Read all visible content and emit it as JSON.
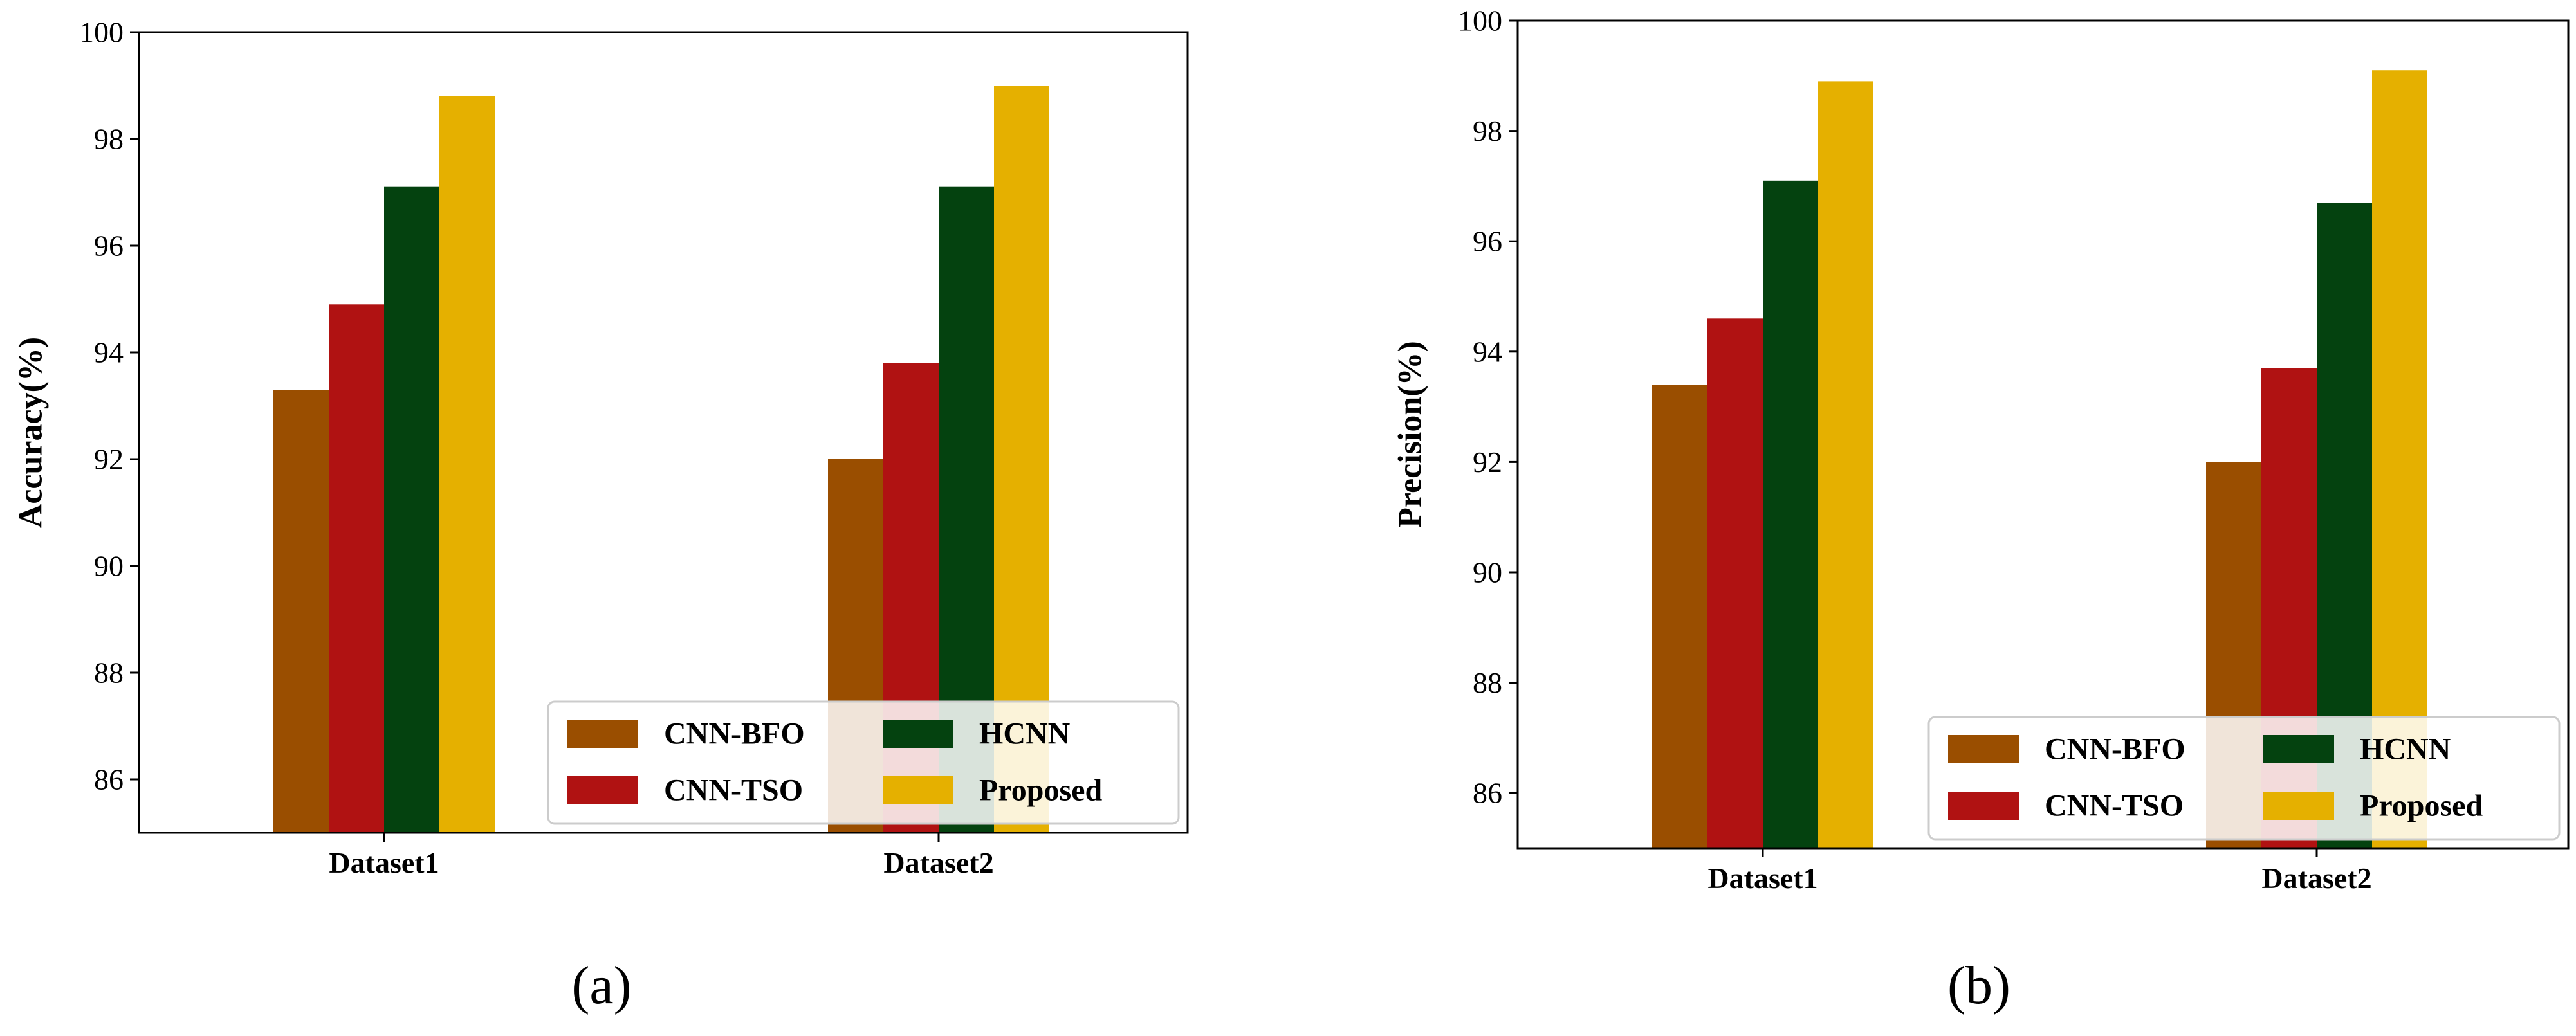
{
  "chart_data": [
    {
      "type": "bar",
      "panel_label": "(a)",
      "ylabel": "Accuracy(%)",
      "xlabel": "",
      "categories": [
        "Dataset1",
        "Dataset2"
      ],
      "ylim": [
        85,
        100
      ],
      "yticks": [
        86,
        88,
        90,
        92,
        94,
        96,
        98,
        100
      ],
      "grid": false,
      "legend_position": "lower-right",
      "series": [
        {
          "name": "CNN-BFO",
          "color": "#9a4e00",
          "values": [
            93.3,
            92.0
          ]
        },
        {
          "name": "CNN-TSO",
          "color": "#b01212",
          "values": [
            94.9,
            93.8
          ]
        },
        {
          "name": "HCNN",
          "color": "#04420f",
          "values": [
            97.1,
            97.1
          ]
        },
        {
          "name": "Proposed",
          "color": "#e5b000",
          "values": [
            98.8,
            99.0
          ]
        }
      ]
    },
    {
      "type": "bar",
      "panel_label": "(b)",
      "ylabel": "Precision(%)",
      "xlabel": "",
      "categories": [
        "Dataset1",
        "Dataset2"
      ],
      "ylim": [
        85,
        100
      ],
      "yticks": [
        86,
        88,
        90,
        92,
        94,
        96,
        98,
        100
      ],
      "grid": false,
      "legend_position": "lower-right",
      "series": [
        {
          "name": "CNN-BFO",
          "color": "#9a4e00",
          "values": [
            93.4,
            92.0
          ]
        },
        {
          "name": "CNN-TSO",
          "color": "#b01212",
          "values": [
            94.6,
            93.7
          ]
        },
        {
          "name": "HCNN",
          "color": "#04420f",
          "values": [
            97.1,
            96.7
          ]
        },
        {
          "name": "Proposed",
          "color": "#e5b000",
          "values": [
            98.9,
            99.1
          ]
        }
      ]
    }
  ]
}
